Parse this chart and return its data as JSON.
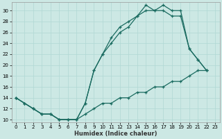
{
  "xlabel": "Humidex (Indice chaleur)",
  "bg_color": "#cce8e4",
  "line_color": "#1a6b60",
  "grid_color": "#b0d8d4",
  "xlim": [
    -0.5,
    23.5
  ],
  "ylim": [
    9.5,
    31.5
  ],
  "xticks": [
    0,
    1,
    2,
    3,
    4,
    5,
    6,
    7,
    8,
    9,
    10,
    11,
    12,
    13,
    14,
    15,
    16,
    17,
    18,
    19,
    20,
    21,
    22,
    23
  ],
  "yticks": [
    10,
    12,
    14,
    16,
    18,
    20,
    22,
    24,
    26,
    28,
    30
  ],
  "line1_x": [
    0,
    1,
    2,
    3,
    4,
    5,
    6,
    7,
    8,
    9,
    10,
    11,
    12,
    13,
    14,
    15,
    16,
    17,
    18,
    19,
    20,
    21,
    22
  ],
  "line1_y": [
    14,
    13,
    12,
    11,
    11,
    10,
    10,
    10,
    13,
    19,
    22,
    25,
    27,
    28,
    29,
    31,
    30,
    31,
    30,
    30,
    23,
    21,
    19
  ],
  "line2_x": [
    0,
    1,
    2,
    3,
    4,
    5,
    6,
    7,
    8,
    9,
    10,
    11,
    12,
    13,
    14,
    15,
    16,
    17,
    18,
    19,
    20,
    21,
    22
  ],
  "line2_y": [
    14,
    13,
    12,
    11,
    11,
    10,
    10,
    10,
    13,
    19,
    22,
    24,
    26,
    27,
    29,
    30,
    30,
    30,
    29,
    29,
    23,
    21,
    19
  ],
  "line3_x": [
    0,
    1,
    2,
    3,
    4,
    5,
    6,
    7,
    8,
    9,
    10,
    11,
    12,
    13,
    14,
    15,
    16,
    17,
    18,
    19,
    20,
    21,
    22
  ],
  "line3_y": [
    14,
    13,
    12,
    11,
    11,
    10,
    10,
    10,
    11,
    12,
    13,
    13,
    14,
    14,
    15,
    15,
    16,
    16,
    17,
    17,
    18,
    19,
    19
  ]
}
